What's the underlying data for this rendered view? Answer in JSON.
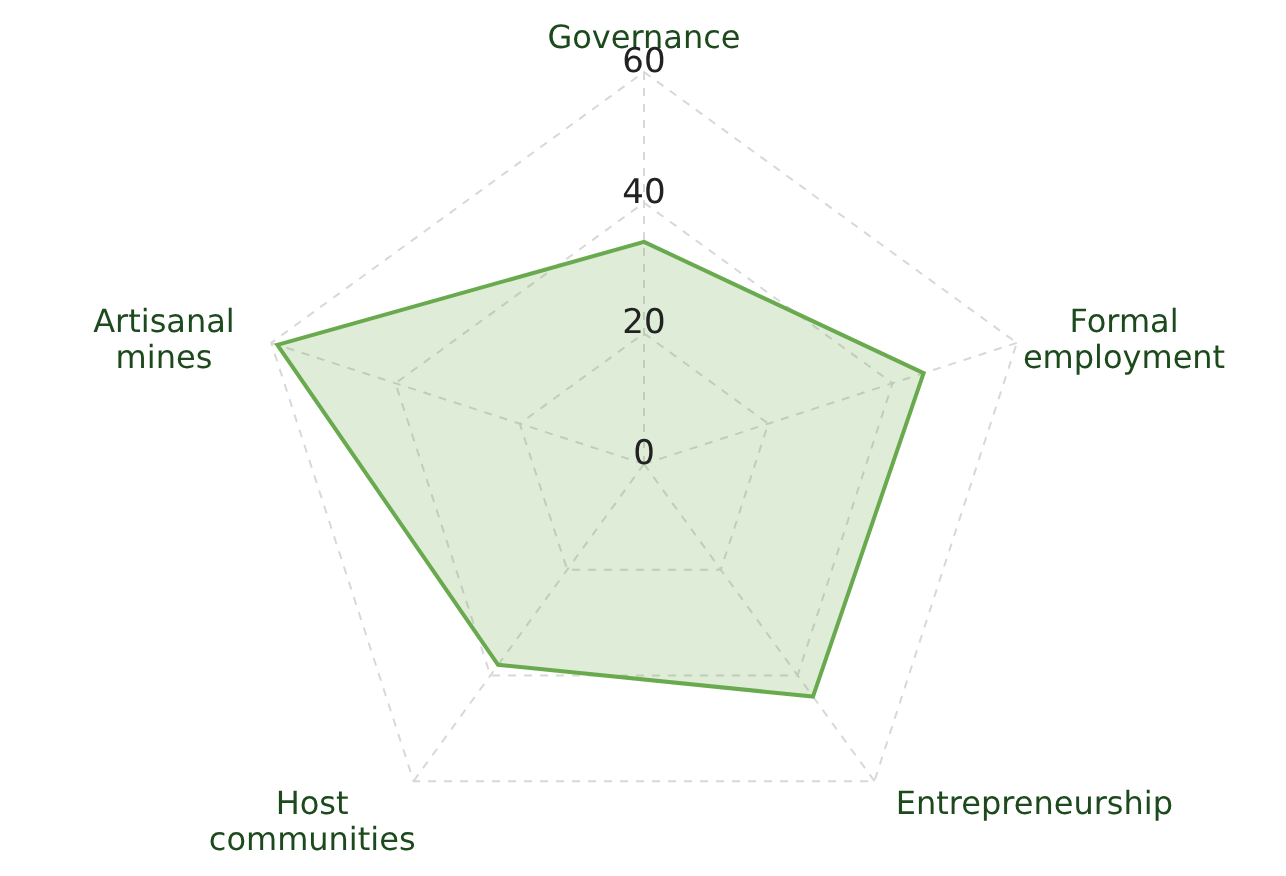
{
  "chart_data": {
    "type": "radar",
    "categories": [
      "Governance",
      "Formal employment",
      "Entrepreneurship",
      "Host communities",
      "Artisanal mines"
    ],
    "series": [
      {
        "color": "#6aaa4f",
        "values": [
          34,
          45,
          44,
          38,
          59
        ]
      }
    ],
    "ylim": [
      0,
      60
    ],
    "yticks": [
      0,
      20,
      40,
      60
    ],
    "grid": true
  }
}
